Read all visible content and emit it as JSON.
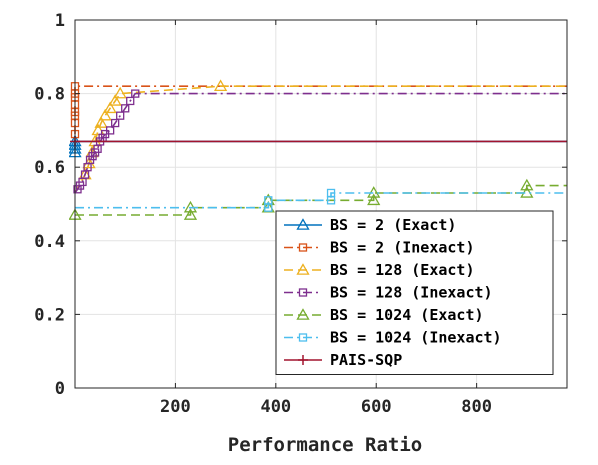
{
  "chart_data": {
    "type": "line",
    "title": "",
    "xlabel": "Performance Ratio",
    "ylabel": "",
    "xlim": [
      0,
      980
    ],
    "ylim": [
      0,
      1
    ],
    "xticks": [
      200,
      400,
      600,
      800
    ],
    "xtick_labels": [
      "200",
      "400",
      "600",
      "800"
    ],
    "yticks": [
      0,
      0.2,
      0.4,
      0.6,
      0.8,
      1
    ],
    "ytick_labels": [
      "0",
      "0.2",
      "0.4",
      "0.6",
      "0.8",
      "1"
    ],
    "grid": true,
    "legend_position": "bottom-right",
    "series": [
      {
        "name": "BS = 2 (Exact)",
        "color": "#0072BD",
        "dash": "solid",
        "marker": "triangle",
        "x": [
          0,
          0,
          0,
          0,
          980
        ],
        "y": [
          0.64,
          0.65,
          0.66,
          0.67,
          0.67
        ],
        "markers_x": [
          0,
          0,
          0,
          0
        ],
        "markers_y": [
          0.64,
          0.65,
          0.66,
          0.67
        ]
      },
      {
        "name": "BS = 2 (Inexact)",
        "color": "#D95319",
        "dash": "dashdot",
        "marker": "square",
        "x": [
          0,
          0,
          0,
          0,
          0,
          0,
          0,
          0,
          980
        ],
        "y": [
          0.69,
          0.72,
          0.74,
          0.75,
          0.77,
          0.79,
          0.8,
          0.82,
          0.82
        ],
        "markers_x": [
          0,
          0,
          0,
          0,
          0,
          0,
          0,
          0
        ],
        "markers_y": [
          0.69,
          0.72,
          0.74,
          0.75,
          0.77,
          0.79,
          0.8,
          0.82
        ]
      },
      {
        "name": "BS = 128 (Exact)",
        "color": "#EDB120",
        "dash": "dashed",
        "marker": "triangle",
        "x": [
          0,
          20,
          28,
          34,
          40,
          46,
          52,
          60,
          70,
          80,
          90,
          290,
          980
        ],
        "y": [
          0.53,
          0.58,
          0.61,
          0.64,
          0.67,
          0.7,
          0.72,
          0.74,
          0.76,
          0.78,
          0.8,
          0.82,
          0.82
        ],
        "markers_x": [
          20,
          28,
          34,
          40,
          46,
          52,
          60,
          70,
          80,
          90,
          290
        ],
        "markers_y": [
          0.58,
          0.61,
          0.64,
          0.67,
          0.7,
          0.72,
          0.74,
          0.76,
          0.78,
          0.8,
          0.82
        ]
      },
      {
        "name": "BS = 128 (Inexact)",
        "color": "#7E2F8E",
        "dash": "dashdot",
        "marker": "square",
        "x": [
          0,
          5,
          10,
          15,
          20,
          25,
          30,
          35,
          40,
          45,
          50,
          55,
          60,
          70,
          80,
          90,
          100,
          110,
          120,
          980
        ],
        "y": [
          0.53,
          0.54,
          0.55,
          0.56,
          0.58,
          0.6,
          0.62,
          0.63,
          0.64,
          0.65,
          0.67,
          0.68,
          0.69,
          0.7,
          0.72,
          0.74,
          0.76,
          0.78,
          0.8,
          0.8
        ],
        "markers_x": [
          5,
          10,
          15,
          20,
          25,
          30,
          35,
          40,
          45,
          50,
          55,
          60,
          70,
          80,
          90,
          100,
          110,
          120
        ],
        "markers_y": [
          0.54,
          0.55,
          0.56,
          0.58,
          0.6,
          0.62,
          0.63,
          0.64,
          0.65,
          0.67,
          0.68,
          0.69,
          0.7,
          0.72,
          0.74,
          0.76,
          0.78,
          0.8
        ]
      },
      {
        "name": "BS = 1024 (Exact)",
        "color": "#77AC30",
        "dash": "dashed",
        "marker": "triangle",
        "x": [
          0,
          230,
          230,
          385,
          385,
          595,
          595,
          900,
          900,
          980
        ],
        "y": [
          0.47,
          0.47,
          0.49,
          0.49,
          0.51,
          0.51,
          0.53,
          0.53,
          0.55,
          0.55
        ],
        "markers_x": [
          0,
          230,
          230,
          385,
          385,
          595,
          595,
          900,
          900
        ],
        "markers_y": [
          0.47,
          0.47,
          0.49,
          0.49,
          0.51,
          0.51,
          0.53,
          0.53,
          0.55
        ]
      },
      {
        "name": "BS = 1024 (Inexact)",
        "color": "#4DBEEE",
        "dash": "dashdot",
        "marker": "square",
        "x": [
          0,
          385,
          385,
          510,
          510,
          980
        ],
        "y": [
          0.49,
          0.49,
          0.51,
          0.51,
          0.53,
          0.53
        ],
        "markers_x": [
          385,
          385,
          510,
          510
        ],
        "markers_y": [
          0.49,
          0.51,
          0.51,
          0.53
        ]
      },
      {
        "name": "PAIS-SQP",
        "color": "#A2142F",
        "dash": "solid",
        "marker": "plus",
        "x": [
          0,
          980
        ],
        "y": [
          0.67,
          0.67
        ],
        "markers_x": [
          0
        ],
        "markers_y": [
          0.67
        ]
      }
    ]
  }
}
